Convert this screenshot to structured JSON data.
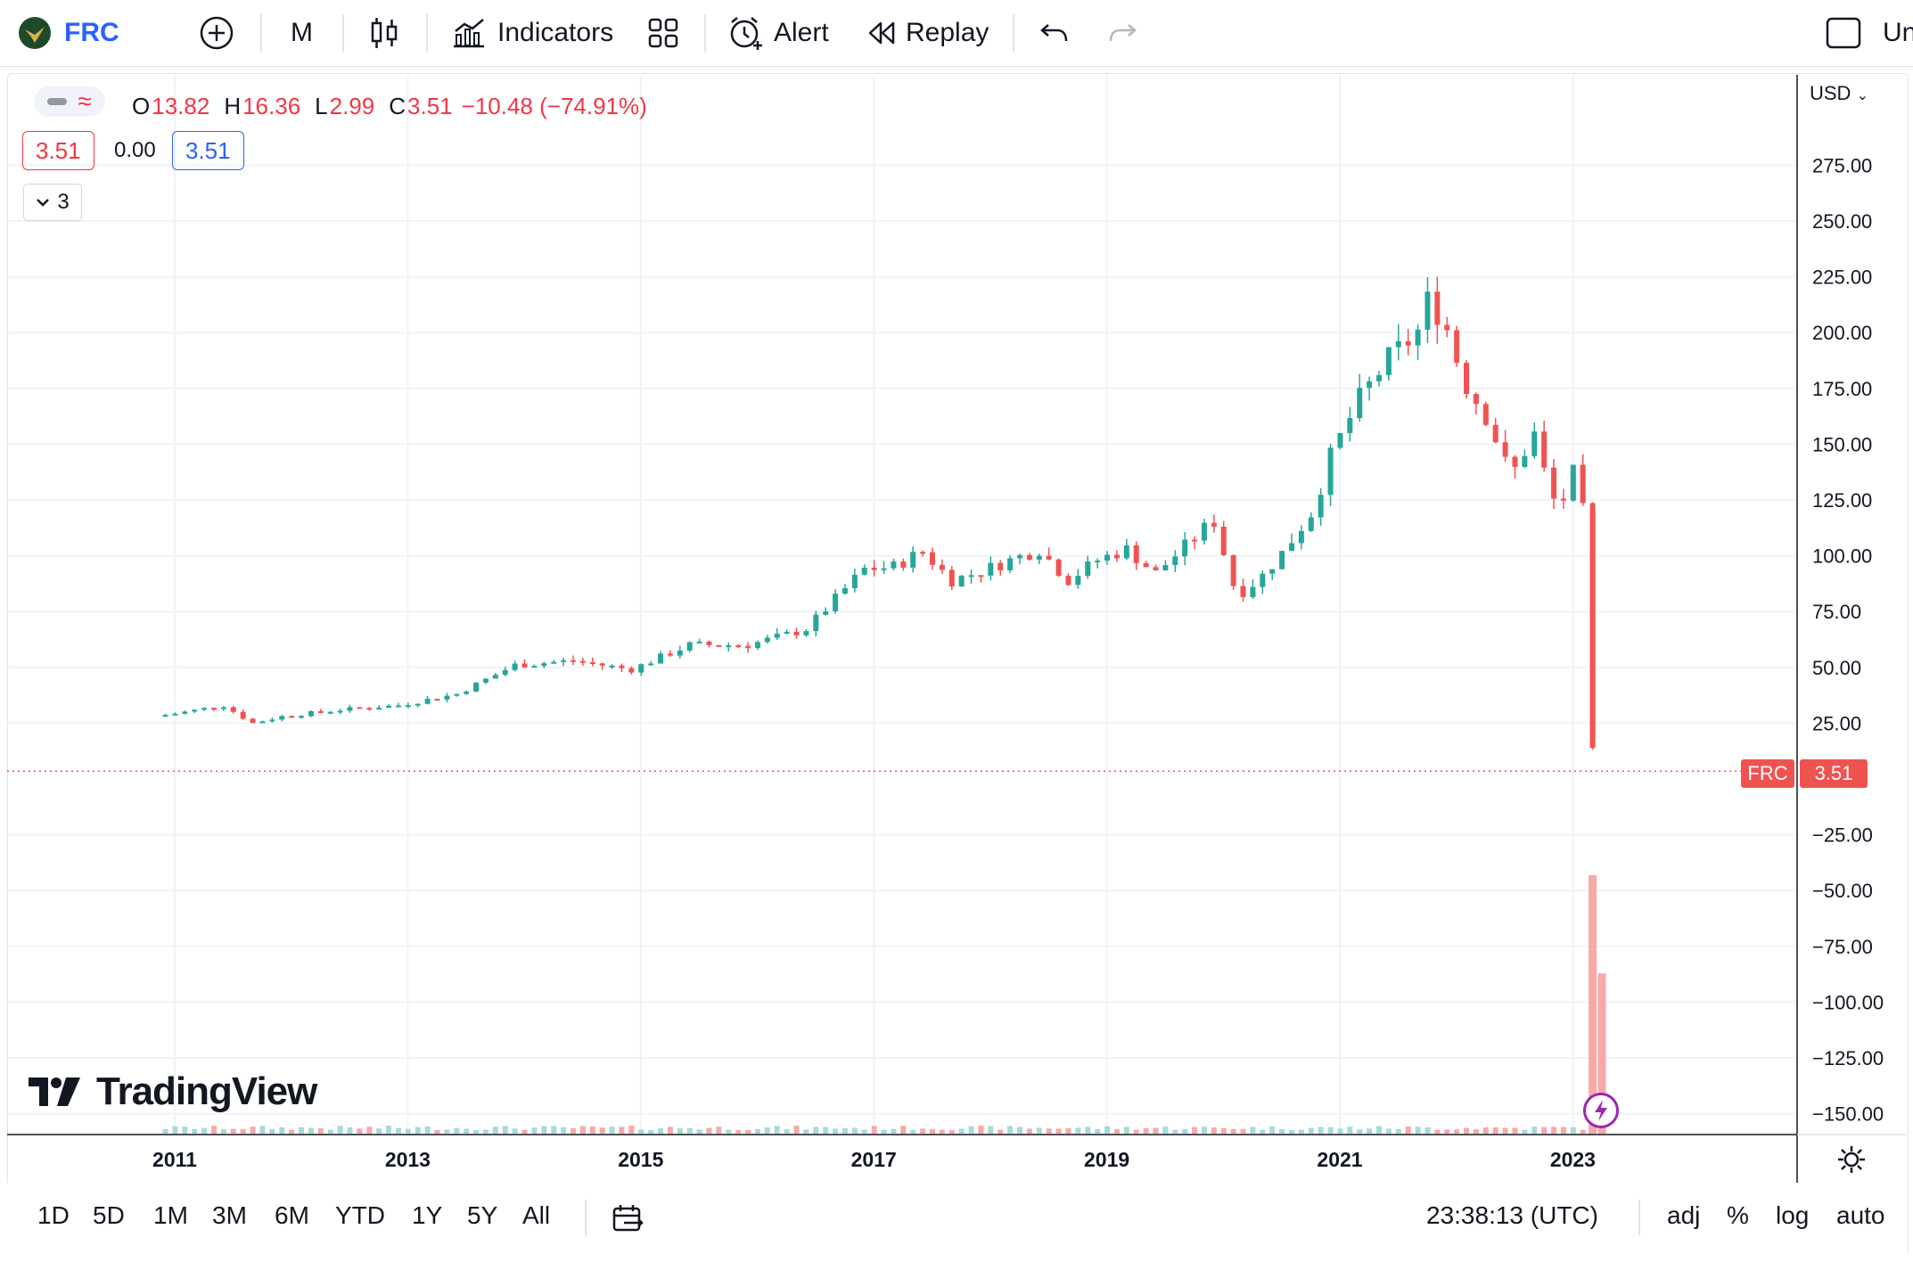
{
  "toolbar": {
    "symbol": "FRC",
    "interval": "M",
    "indicators_label": "Indicators",
    "alert_label": "Alert",
    "replay_label": "Replay",
    "unnamed_label": "Un"
  },
  "legend": {
    "o_label": "O",
    "o_value": "13.82",
    "h_label": "H",
    "h_value": "16.36",
    "l_label": "L",
    "l_value": "2.99",
    "c_label": "C",
    "c_value": "3.51",
    "change": "−10.48 (−74.91%)",
    "bid": "3.51",
    "spread": "0.00",
    "ask": "3.51",
    "collapse_count": "3"
  },
  "currency": "USD",
  "last_price_tag": {
    "symbol": "FRC",
    "price": "3.51"
  },
  "watermark": "TradingView",
  "bottom_bar": {
    "ranges": [
      "1D",
      "5D",
      "1M",
      "3M",
      "6M",
      "YTD",
      "1Y",
      "5Y",
      "All"
    ],
    "clock": "23:38:13 (UTC)",
    "adj": "adj",
    "percent": "%",
    "log": "log",
    "auto": "auto"
  },
  "colors": {
    "up": "#26a69a",
    "down": "#ef5350",
    "accent": "#2962ff"
  },
  "chart_data": {
    "type": "candlestick",
    "interval": "monthly",
    "ylim": [
      -160,
      300
    ],
    "y_ticks": [
      "275.00",
      "250.00",
      "225.00",
      "200.00",
      "175.00",
      "150.00",
      "125.00",
      "100.00",
      "75.00",
      "50.00",
      "25.00",
      "−25.00",
      "−50.00",
      "−75.00",
      "−100.00",
      "−125.00",
      "−150.00"
    ],
    "y_tick_values": [
      275,
      250,
      225,
      200,
      175,
      150,
      125,
      100,
      75,
      50,
      25,
      -25,
      -50,
      -75,
      -100,
      -125,
      -150
    ],
    "x_ticks": [
      "2011",
      "2013",
      "2015",
      "2017",
      "2019",
      "2021",
      "2023"
    ],
    "x_tick_years": [
      2011,
      2013,
      2015,
      2017,
      2019,
      2021,
      2023
    ],
    "anchors": [
      [
        2010.92,
        28
      ],
      [
        2011.17,
        30
      ],
      [
        2011.5,
        33
      ],
      [
        2011.75,
        25
      ],
      [
        2012.0,
        28
      ],
      [
        2012.5,
        31
      ],
      [
        2013.0,
        33
      ],
      [
        2013.5,
        38
      ],
      [
        2014.0,
        51
      ],
      [
        2014.5,
        53
      ],
      [
        2015.0,
        49
      ],
      [
        2015.5,
        60
      ],
      [
        2016.0,
        60
      ],
      [
        2016.5,
        67
      ],
      [
        2017.0,
        94
      ],
      [
        2017.25,
        95
      ],
      [
        2017.5,
        102
      ],
      [
        2017.75,
        89
      ],
      [
        2018.0,
        93
      ],
      [
        2018.5,
        103
      ],
      [
        2018.75,
        89
      ],
      [
        2019.0,
        98
      ],
      [
        2019.25,
        103
      ],
      [
        2019.5,
        92
      ],
      [
        2019.75,
        104
      ],
      [
        2020.0,
        116
      ],
      [
        2020.2,
        82
      ],
      [
        2020.4,
        90
      ],
      [
        2020.6,
        102
      ],
      [
        2020.85,
        120
      ],
      [
        2021.0,
        144
      ],
      [
        2021.25,
        170
      ],
      [
        2021.5,
        188
      ],
      [
        2021.75,
        200
      ],
      [
        2021.85,
        216
      ],
      [
        2022.0,
        202
      ],
      [
        2022.15,
        178
      ],
      [
        2022.35,
        162
      ],
      [
        2022.55,
        135
      ],
      [
        2022.75,
        155
      ],
      [
        2022.9,
        125
      ],
      [
        2023.0,
        125
      ],
      [
        2023.08,
        138
      ],
      [
        2023.17,
        120
      ],
      [
        2023.25,
        14
      ],
      [
        2023.33,
        3.51
      ]
    ],
    "last_close": 3.51,
    "big_volume_bars": [
      {
        "x": 2023.17,
        "rel": 1.0
      },
      {
        "x": 2023.25,
        "rel": 0.62
      }
    ]
  }
}
